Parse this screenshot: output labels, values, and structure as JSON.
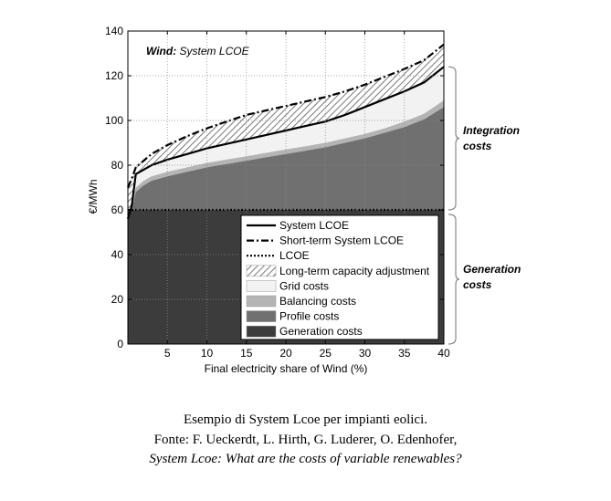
{
  "chart_data": {
    "type": "area",
    "title_bold": "Wind:",
    "title_rest": "System LCOE",
    "xlabel": "Final electricity share of Wind (%)",
    "ylabel": "€/MWh",
    "xlim": [
      0,
      40
    ],
    "ylim": [
      0,
      140
    ],
    "xticks": [
      5,
      10,
      15,
      20,
      25,
      30,
      35,
      40
    ],
    "yticks": [
      0,
      20,
      40,
      60,
      80,
      100,
      120,
      140
    ],
    "grid": true,
    "legend_position": "lower-right",
    "x": [
      0,
      0.5,
      1,
      2,
      3,
      5,
      7.5,
      10,
      12.5,
      15,
      17.5,
      20,
      22.5,
      25,
      27.5,
      30,
      32.5,
      35,
      37.5,
      40
    ],
    "generation_costs": [
      60,
      60,
      60,
      60,
      60,
      60,
      60,
      60,
      60,
      60,
      60,
      60,
      60,
      60,
      60,
      60,
      60,
      60,
      60,
      60
    ],
    "profile_costs_top": [
      48,
      60,
      68,
      71,
      73,
      75,
      77,
      79,
      80.5,
      82,
      83.5,
      85,
      86.5,
      88,
      90,
      92,
      94.5,
      97,
      100.5,
      106
    ],
    "balancing_costs_top": [
      50,
      63,
      70,
      73,
      75,
      77,
      79,
      81,
      82.5,
      84,
      85.5,
      87,
      88.5,
      90,
      92,
      94,
      96.5,
      99.5,
      103,
      109
    ],
    "system_lcoe": [
      56,
      62,
      76,
      78,
      80,
      82.5,
      85,
      87.5,
      89.5,
      91.5,
      93.5,
      95.5,
      97.5,
      99.5,
      102.5,
      106,
      109.5,
      113,
      117,
      124
    ],
    "short_term_lcoe": [
      70,
      74,
      79,
      82,
      85,
      89,
      93,
      96.5,
      99.5,
      102.5,
      104.5,
      106.5,
      108.5,
      110.5,
      113,
      116,
      119.5,
      123,
      127,
      134
    ],
    "lcoe": [
      60,
      60,
      60,
      60,
      60,
      60,
      60,
      60,
      60,
      60,
      60,
      60,
      60,
      60,
      60,
      60,
      60,
      60,
      60,
      60
    ],
    "series": [
      {
        "name": "System LCOE"
      },
      {
        "name": "Short-term System LCOE"
      },
      {
        "name": "LCOE"
      },
      {
        "name": "Long-term capacity adjustment"
      },
      {
        "name": "Grid costs"
      },
      {
        "name": "Balancing costs"
      },
      {
        "name": "Profile costs"
      },
      {
        "name": "Generation costs"
      }
    ],
    "annotations": {
      "integration_costs": [
        "Integration",
        "costs"
      ],
      "generation_costs": [
        "Generation",
        "costs"
      ]
    }
  },
  "colors": {
    "generation": "#3c3c3c",
    "profile": "#707070",
    "balancing": "#b4b4b4",
    "grid": "#f2f2f2",
    "lines": "#000000"
  },
  "caption": {
    "line1": "Esempio di System Lcoe per impianti eolici.",
    "line2": "Fonte: F. Ueckerdt, L. Hirth, G. Luderer, O. Edenhofer,",
    "line3": "System Lcoe: What are the costs of variable renewables?"
  }
}
